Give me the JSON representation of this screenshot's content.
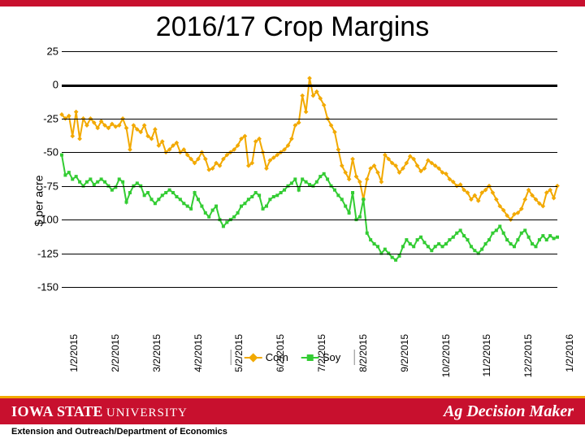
{
  "title": "2016/17 Crop Margins",
  "ylabel": "$ per acre",
  "colors": {
    "top_bar": "#c8102e",
    "corn": "#f2a900",
    "soy": "#33cc33",
    "grid": "#000000",
    "footer_red": "#c8102e",
    "footer_yellow": "#f2a900",
    "footer_text_bg": "#ffffff"
  },
  "chart": {
    "type": "line",
    "ylim": [
      -150,
      25
    ],
    "ytick_step": 25,
    "yticks": [
      25,
      0,
      -25,
      -50,
      -75,
      -100,
      -125,
      -150
    ],
    "xlabels": [
      "1/2/2015",
      "2/2/2015",
      "3/2/2015",
      "4/2/2015",
      "5/2/2015",
      "6/2/2015",
      "7/2/2015",
      "8/2/2015",
      "9/2/2015",
      "10/2/2015",
      "11/2/2015",
      "12/2/2015",
      "1/2/2016"
    ],
    "series": [
      {
        "name": "Corn",
        "color": "#f2a900",
        "marker": "diamond",
        "line_width": 2,
        "marker_size": 4,
        "values": [
          -22,
          -25,
          -23,
          -38,
          -20,
          -40,
          -25,
          -30,
          -25,
          -28,
          -32,
          -27,
          -30,
          -32,
          -29,
          -31,
          -30,
          -25,
          -32,
          -48,
          -30,
          -33,
          -35,
          -30,
          -38,
          -40,
          -33,
          -45,
          -42,
          -50,
          -48,
          -45,
          -43,
          -50,
          -48,
          -52,
          -55,
          -58,
          -55,
          -50,
          -55,
          -63,
          -62,
          -58,
          -60,
          -55,
          -52,
          -50,
          -48,
          -45,
          -40,
          -38,
          -60,
          -58,
          -42,
          -40,
          -50,
          -62,
          -56,
          -54,
          -52,
          -50,
          -48,
          -45,
          -40,
          -30,
          -28,
          -8,
          -20,
          5,
          -8,
          -5,
          -10,
          -15,
          -25,
          -30,
          -35,
          -48,
          -60,
          -65,
          -70,
          -55,
          -68,
          -72,
          -85,
          -70,
          -62,
          -60,
          -65,
          -72,
          -52,
          -55,
          -58,
          -60,
          -65,
          -62,
          -58,
          -53,
          -55,
          -60,
          -64,
          -62,
          -56,
          -58,
          -60,
          -62,
          -65,
          -66,
          -70,
          -72,
          -75,
          -74,
          -78,
          -80,
          -85,
          -82,
          -86,
          -80,
          -78,
          -75,
          -80,
          -85,
          -90,
          -93,
          -97,
          -100,
          -96,
          -95,
          -92,
          -85,
          -78,
          -82,
          -85,
          -88,
          -90,
          -80,
          -78,
          -84,
          -75
        ]
      },
      {
        "name": "Soy",
        "color": "#33cc33",
        "marker": "square",
        "line_width": 2,
        "marker_size": 4,
        "values": [
          -52,
          -67,
          -65,
          -70,
          -68,
          -72,
          -75,
          -72,
          -70,
          -74,
          -72,
          -70,
          -72,
          -75,
          -78,
          -76,
          -70,
          -72,
          -87,
          -80,
          -75,
          -73,
          -75,
          -82,
          -80,
          -85,
          -88,
          -85,
          -82,
          -80,
          -78,
          -80,
          -83,
          -85,
          -88,
          -90,
          -92,
          -80,
          -85,
          -90,
          -95,
          -98,
          -93,
          -90,
          -100,
          -105,
          -102,
          -100,
          -98,
          -95,
          -90,
          -88,
          -85,
          -83,
          -80,
          -82,
          -92,
          -90,
          -85,
          -83,
          -82,
          -80,
          -78,
          -75,
          -73,
          -70,
          -78,
          -70,
          -72,
          -74,
          -75,
          -72,
          -68,
          -66,
          -70,
          -75,
          -78,
          -82,
          -85,
          -90,
          -95,
          -80,
          -100,
          -98,
          -85,
          -110,
          -115,
          -118,
          -120,
          -125,
          -122,
          -125,
          -128,
          -130,
          -127,
          -120,
          -115,
          -118,
          -120,
          -115,
          -113,
          -117,
          -120,
          -123,
          -120,
          -118,
          -120,
          -118,
          -115,
          -113,
          -110,
          -108,
          -112,
          -115,
          -120,
          -123,
          -125,
          -122,
          -118,
          -115,
          -110,
          -108,
          -105,
          -110,
          -115,
          -118,
          -120,
          -115,
          -110,
          -108,
          -113,
          -118,
          -120,
          -115,
          -112,
          -115,
          -112,
          -114,
          -113
        ]
      }
    ]
  },
  "legend": {
    "items": [
      "Corn",
      "Soy"
    ]
  },
  "footer": {
    "university_iowa": "IOWA ",
    "university_state": "STATE ",
    "university_univ": "UNIVERSITY",
    "brand": "Ag Decision Maker",
    "dept": "Extension and Outreach/Department of Economics"
  }
}
